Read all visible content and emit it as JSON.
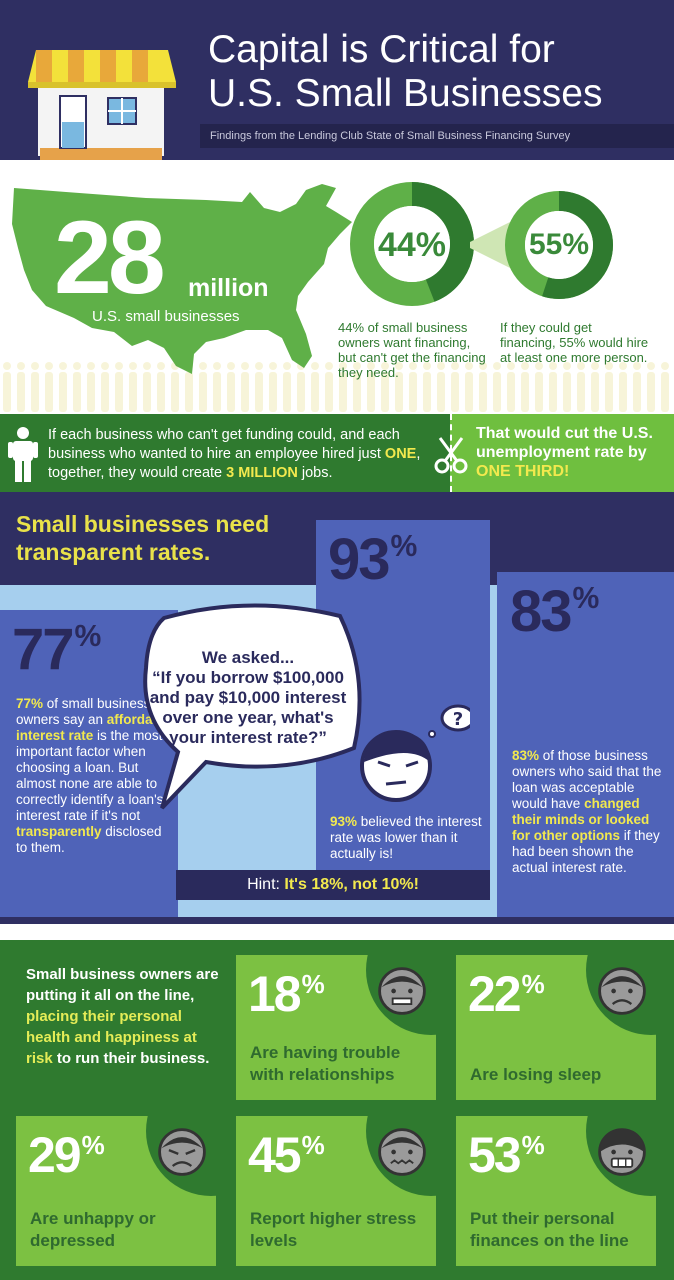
{
  "header": {
    "title_line1": "Capital is Critical for",
    "title_line2": "U.S. Small Businesses",
    "subtitle": "Findings from the Lending Club State of Small Business Financing Survey"
  },
  "map": {
    "big_number": "28",
    "big_unit": "million",
    "caption": "U.S. small businesses"
  },
  "donuts": [
    {
      "label": "44%",
      "fraction": 0.44,
      "note": "44% of small business owners want financing, but can't get the financing they need."
    },
    {
      "label": "55%",
      "fraction": 0.55,
      "note": "If they could get financing, 55% would hire at least one more person."
    }
  ],
  "jobs": {
    "text_part1": "If each business who can't get funding could, and each business who wanted to hire an employee hired just ",
    "text_em1": "ONE",
    "text_part2": ", together, they would create ",
    "text_em2": "3 MILLION",
    "text_part3": " jobs.",
    "unemployment_part1": "That would cut the U.S. unemployment rate by ",
    "unemployment_em": "ONE THIRD!"
  },
  "rates": {
    "title": "Small businesses need transparent rates.",
    "col77": {
      "pct": "77",
      "pct_sign": "%",
      "t1": "77%",
      "t2": " of small business owners say an ",
      "t3": "affordable interest rate",
      "t4": " is the most important factor when choosing a loan. But almost none are able to correctly identify a loan's interest rate if it's not ",
      "t5": "transparently",
      "t6": " disclosed to them."
    },
    "col93": {
      "pct": "93",
      "pct_sign": "%",
      "t1": "93%",
      "t2": " believed the interest rate was lower than it actually is!"
    },
    "col83": {
      "pct": "83",
      "pct_sign": "%",
      "t1": "83%",
      "t2": " of those business owners who said that the loan was acceptable would have ",
      "t3": "changed their minds or looked for other options",
      "t4": " if they had been shown the actual interest rate."
    },
    "bubble": {
      "line1": "We asked...",
      "line2a": "“If you ",
      "line2b": "borrow $100,000",
      "line3": "and pay $10,000 interest over one year, what's your interest rate?”"
    },
    "face_icon": "confused-face-icon",
    "hint_label": "Hint: ",
    "hint_value": "It's 18%, not 10%!"
  },
  "health": {
    "intro_part1": "Small business owners are putting it all on the line, ",
    "intro_em": "placing their personal health and happiness at risk",
    "intro_part2": " to run their business.",
    "cards": [
      {
        "pct": "18",
        "label": "Are having trouble with relationships",
        "face": "grimace-face-icon"
      },
      {
        "pct": "22",
        "label": "Are losing sleep",
        "face": "sad-face-icon"
      },
      {
        "pct": "29",
        "label": "Are unhappy or depressed",
        "face": "depressed-face-icon"
      },
      {
        "pct": "45",
        "label": "Report higher stress levels",
        "face": "stressed-face-icon"
      },
      {
        "pct": "53",
        "label": "Put their personal finances on the line",
        "face": "teeth-face-icon"
      }
    ]
  },
  "colors": {
    "navy": "#2f2f62",
    "green_dark": "#2f7a2f",
    "green_light": "#7cc142",
    "blue_col": "#4f63b8",
    "blue_light": "#a6cfee",
    "yellow": "#e9e24a"
  }
}
